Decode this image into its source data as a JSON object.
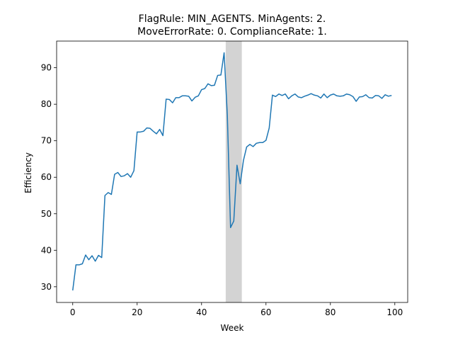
{
  "chart_data": {
    "type": "line",
    "title_lines": [
      "FlagRule: MIN_AGENTS. MinAgents: 2.",
      "MoveErrorRate: 0. ComplianceRate: 1."
    ],
    "xlabel": "Week",
    "ylabel": "Efficiency",
    "xlim": [
      -5,
      104
    ],
    "ylim": [
      25.7,
      97.3
    ],
    "xticks": [
      0,
      20,
      40,
      60,
      80,
      100
    ],
    "yticks": [
      30,
      40,
      50,
      60,
      70,
      80,
      90
    ],
    "grid": false,
    "shaded_region": {
      "x_start": 47.5,
      "x_end": 52.5,
      "color": "#d3d3d3"
    },
    "series": [
      {
        "color": "#1f77b4",
        "x": [
          0,
          1,
          2,
          3,
          4,
          5,
          6,
          7,
          8,
          9,
          10,
          11,
          12,
          13,
          14,
          15,
          16,
          17,
          18,
          19,
          20,
          21,
          22,
          23,
          24,
          25,
          26,
          27,
          28,
          29,
          30,
          31,
          32,
          33,
          34,
          35,
          36,
          37,
          38,
          39,
          40,
          41,
          42,
          43,
          44,
          45,
          46,
          47,
          48,
          49,
          50,
          51,
          52,
          53,
          54,
          55,
          56,
          57,
          58,
          59,
          60,
          61,
          62,
          63,
          64,
          65,
          66,
          67,
          68,
          69,
          70,
          71,
          72,
          73,
          74,
          75,
          76,
          77,
          78,
          79,
          80,
          81,
          82,
          83,
          84,
          85,
          86,
          87,
          88,
          89,
          90,
          91,
          92,
          93,
          94,
          95,
          96,
          97,
          98,
          99
        ],
        "values": [
          29.0,
          36.0,
          36.0,
          36.3,
          38.7,
          37.4,
          38.5,
          37.0,
          38.6,
          38.0,
          55.0,
          55.8,
          55.3,
          60.8,
          61.3,
          60.2,
          60.4,
          61.0,
          60.0,
          61.8,
          72.4,
          72.4,
          72.6,
          73.5,
          73.4,
          72.6,
          71.9,
          73.1,
          71.4,
          81.4,
          81.3,
          80.4,
          81.8,
          81.8,
          82.3,
          82.3,
          82.2,
          80.9,
          81.9,
          82.3,
          84.0,
          84.3,
          85.6,
          85.1,
          85.2,
          87.9,
          88.0,
          94.1,
          77.0,
          46.2,
          48.0,
          63.3,
          58.2,
          64.6,
          68.3,
          69.0,
          68.4,
          69.3,
          69.5,
          69.5,
          70.1,
          73.5,
          82.5,
          82.1,
          82.8,
          82.4,
          82.8,
          81.5,
          82.3,
          82.8,
          82.0,
          81.8,
          82.2,
          82.5,
          82.9,
          82.5,
          82.3,
          81.7,
          82.8,
          81.8,
          82.5,
          82.8,
          82.3,
          82.2,
          82.3,
          82.8,
          82.6,
          82.1,
          80.8,
          82.0,
          82.1,
          82.6,
          81.8,
          81.7,
          82.4,
          82.3,
          81.6,
          82.6,
          82.2,
          82.4
        ]
      }
    ]
  }
}
